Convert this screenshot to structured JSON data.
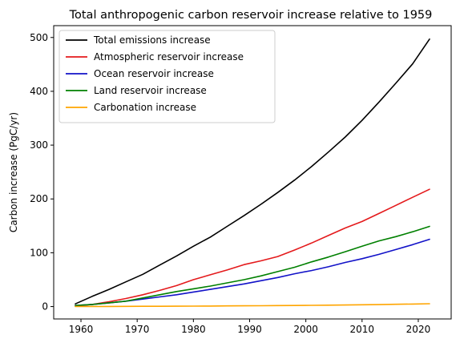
{
  "chart_data": {
    "type": "line",
    "title": "Total anthropogenic carbon reservoir increase relative to 1959",
    "xlabel": "",
    "ylabel": "Carbon increase (PgC/yr)",
    "xlim": [
      1955.15,
      2025.85
    ],
    "ylim": [
      -23,
      522
    ],
    "xticks": [
      1960,
      1970,
      1980,
      1990,
      2000,
      2010,
      2020
    ],
    "yticks": [
      0,
      100,
      200,
      300,
      400,
      500
    ],
    "grid": false,
    "legend_position": "upper-left",
    "series": [
      {
        "name": "Total emissions increase",
        "color": "#000000",
        "x": [
          1959,
          1962,
          1965,
          1968,
          1971,
          1974,
          1977,
          1980,
          1983,
          1986,
          1989,
          1992,
          1995,
          1998,
          2001,
          2004,
          2007,
          2010,
          2013,
          2016,
          2019,
          2022
        ],
        "values": [
          5,
          19,
          32,
          46,
          60,
          77,
          94,
          112,
          129,
          149,
          169,
          190,
          212,
          235,
          260,
          287,
          315,
          346,
          380,
          415,
          451,
          497
        ]
      },
      {
        "name": "Atmospheric reservoir increase",
        "color": "#e41a1c",
        "x": [
          1959,
          1962,
          1965,
          1968,
          1971,
          1974,
          1977,
          1980,
          1983,
          1986,
          1989,
          1992,
          1995,
          1998,
          2001,
          2004,
          2007,
          2010,
          2013,
          2016,
          2019,
          2022
        ],
        "values": [
          1,
          4,
          9,
          15,
          22,
          30,
          39,
          50,
          59,
          68,
          78,
          85,
          93,
          105,
          118,
          132,
          146,
          158,
          173,
          188,
          203,
          218
        ]
      },
      {
        "name": "Ocean reservoir increase",
        "color": "#1212c8",
        "x": [
          1959,
          1962,
          1965,
          1968,
          1971,
          1974,
          1977,
          1980,
          1983,
          1986,
          1989,
          1992,
          1995,
          1998,
          2001,
          2004,
          2007,
          2010,
          2013,
          2016,
          2019,
          2022
        ],
        "values": [
          2,
          4,
          7,
          10,
          14,
          18,
          22,
          27,
          32,
          37,
          42,
          48,
          54,
          61,
          67,
          74,
          82,
          89,
          97,
          106,
          115,
          125
        ]
      },
      {
        "name": "Land reservoir increase",
        "color": "#008000",
        "x": [
          1959,
          1962,
          1965,
          1968,
          1971,
          1974,
          1977,
          1980,
          1983,
          1986,
          1989,
          1992,
          1995,
          1998,
          2001,
          2004,
          2007,
          2010,
          2013,
          2016,
          2019,
          2022
        ],
        "values": [
          2,
          4,
          7,
          10,
          16,
          22,
          28,
          33,
          38,
          44,
          50,
          57,
          65,
          73,
          83,
          92,
          102,
          112,
          122,
          130,
          139,
          149
        ]
      },
      {
        "name": "Carbonation increase",
        "color": "#ffa500",
        "x": [
          1959,
          1962,
          1965,
          1968,
          1971,
          1974,
          1977,
          1980,
          1983,
          1986,
          1989,
          1992,
          1995,
          1998,
          2001,
          2004,
          2007,
          2010,
          2013,
          2016,
          2019,
          2022
        ],
        "values": [
          0.1,
          0.2,
          0.3,
          0.4,
          0.5,
          0.6,
          0.7,
          0.8,
          1.0,
          1.2,
          1.4,
          1.6,
          1.8,
          2.0,
          2.3,
          2.6,
          2.9,
          3.3,
          3.7,
          4.2,
          4.7,
          5.3
        ]
      }
    ]
  }
}
